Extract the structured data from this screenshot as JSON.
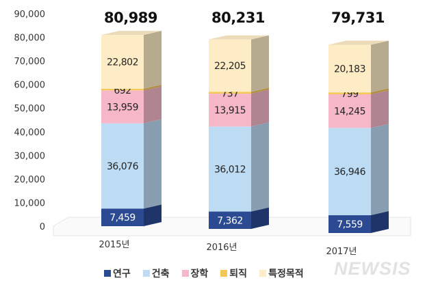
{
  "chart_data": {
    "type": "bar",
    "stacked": true,
    "style": "3d",
    "categories": [
      "2015년",
      "2016년",
      "2017년"
    ],
    "series": [
      {
        "name": "연구",
        "color": "#2b4a92",
        "values": [
          7459,
          7362,
          7559
        ]
      },
      {
        "name": "건축",
        "color": "#bddcf4",
        "values": [
          36076,
          36012,
          36946
        ]
      },
      {
        "name": "장학",
        "color": "#f6b8c9",
        "values": [
          13959,
          13915,
          14245
        ]
      },
      {
        "name": "퇴직",
        "color": "#f4c857",
        "values": [
          692,
          737,
          799
        ]
      },
      {
        "name": "특정목적",
        "color": "#fdecc6",
        "values": [
          22802,
          22205,
          20183
        ]
      }
    ],
    "totals": [
      80989,
      80231,
      79731
    ],
    "total_labels": [
      "80,989",
      "80,231",
      "79,731"
    ],
    "value_labels": [
      [
        "7,459",
        "36,076",
        "13,959",
        "692",
        "22,802"
      ],
      [
        "7,362",
        "36,012",
        "13,915",
        "737",
        "22,205"
      ],
      [
        "7,559",
        "36,946",
        "14,245",
        "799",
        "20,183"
      ]
    ],
    "ylim": [
      0,
      90000
    ],
    "yticks": [
      "0",
      "10,000",
      "20,000",
      "30,000",
      "40,000",
      "50,000",
      "60,000",
      "70,000",
      "80,000",
      "90,000"
    ],
    "grid": false,
    "legend_position": "bottom"
  },
  "watermark": "NEWSIS"
}
